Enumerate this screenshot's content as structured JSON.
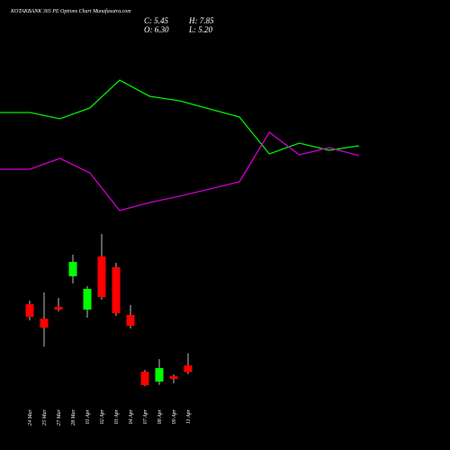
{
  "chart_data": [
    {
      "type": "candlestick",
      "title": "KOTAKBANK 365 PE Options  Chart Munafasutra.com",
      "stats": [
        "C: 5.45",
        "H: 7.85",
        "O: 6.30",
        "L: 5.20"
      ],
      "categories": [
        "24 Mar",
        "25 Mar",
        "27 Mar",
        "28 Mar",
        "01 Apr",
        "02 Apr",
        "03 Apr",
        "04 Apr",
        "07 Apr",
        "08 Apr",
        "09 Apr",
        "11 Apr"
      ],
      "open": [
        14.12,
        12.28,
        13.78,
        17.69,
        13.43,
        20.22,
        18.84,
        12.74,
        5.5,
        4.23,
        4.92,
        6.3
      ],
      "high": [
        14.58,
        15.62,
        14.93,
        20.45,
        16.42,
        23.09,
        19.41,
        14.01,
        5.73,
        7.11,
        5.15,
        7.85
      ],
      "low": [
        12.05,
        8.72,
        13.2,
        16.77,
        12.4,
        14.7,
        12.63,
        11.02,
        3.66,
        3.82,
        4.0,
        5.2
      ],
      "close": [
        12.51,
        11.13,
        13.43,
        19.53,
        16.08,
        15.04,
        12.97,
        11.36,
        3.77,
        5.96,
        4.58,
        5.45
      ],
      "up_color": "#00ff00",
      "down_color": "#ff0000"
    },
    {
      "type": "line",
      "series": [
        {
          "color": "#00ee00",
          "values": [
            175,
            175,
            168,
            180,
            211,
            193,
            188,
            179,
            170,
            129,
            141,
            133,
            138
          ]
        },
        {
          "color": "#cc00cc",
          "values": [
            112,
            112,
            124,
            108,
            66,
            75,
            82,
            90,
            98,
            153,
            128,
            136,
            127
          ]
        }
      ]
    }
  ]
}
